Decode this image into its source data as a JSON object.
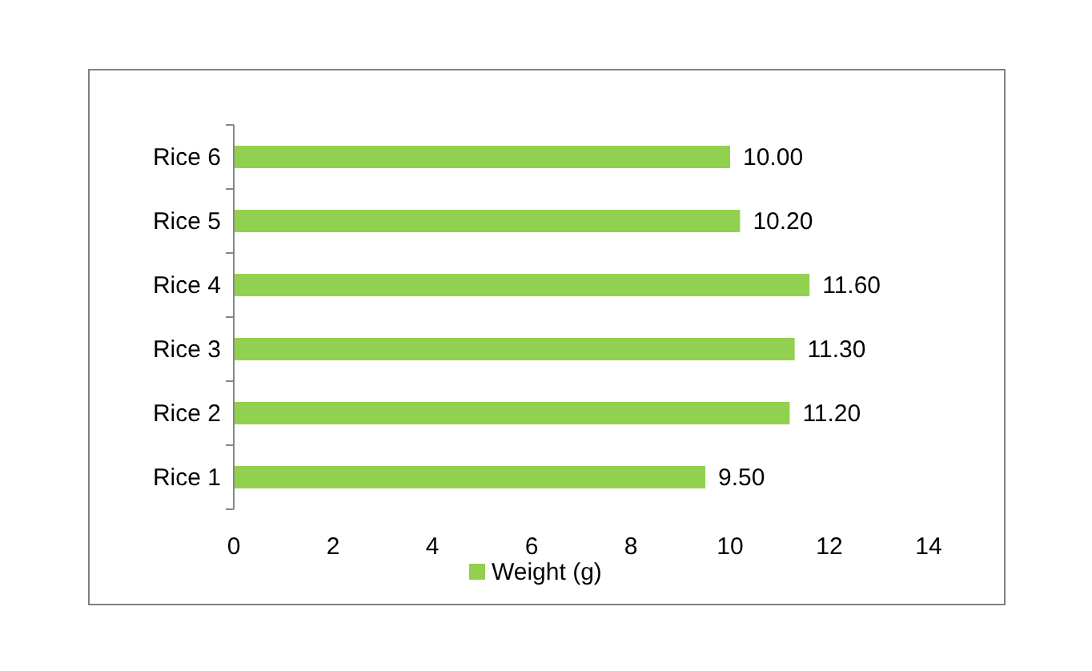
{
  "chart_data": {
    "type": "bar",
    "orientation": "horizontal",
    "categories": [
      "Rice 6",
      "Rice 5",
      "Rice 4",
      "Rice 3",
      "Rice 2",
      "Rice 1"
    ],
    "series": [
      {
        "name": "Weight (g)",
        "color": "#92d050",
        "values": [
          10.0,
          10.2,
          11.6,
          11.3,
          11.2,
          9.5
        ],
        "value_labels": [
          "10.00",
          "10.20",
          "11.60",
          "11.30",
          "11.20",
          "9.50"
        ]
      }
    ],
    "xlim": [
      0,
      14
    ],
    "xticks": [
      0,
      2,
      4,
      6,
      8,
      10,
      12,
      14
    ],
    "grid": false,
    "legend": "bottom"
  }
}
